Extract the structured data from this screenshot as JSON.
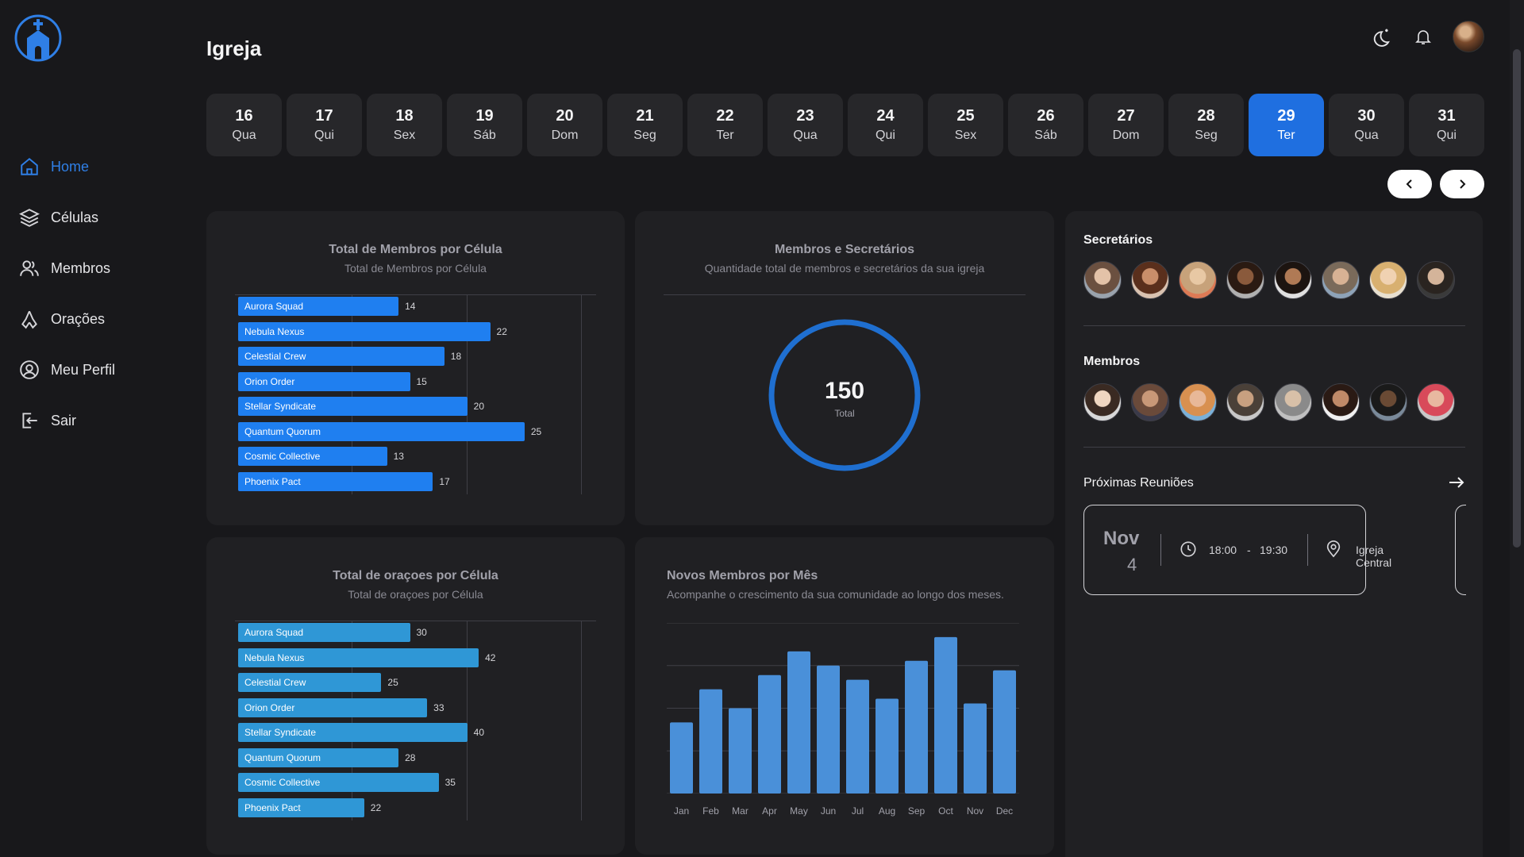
{
  "sidebar": {
    "items": [
      {
        "label": "Home",
        "icon": "home-icon"
      },
      {
        "label": "Células",
        "icon": "layers-icon"
      },
      {
        "label": "Membros",
        "icon": "users-icon"
      },
      {
        "label": "Orações",
        "icon": "praying-hands-icon"
      },
      {
        "label": "Meu Perfil",
        "icon": "user-circle-icon"
      },
      {
        "label": "Sair",
        "icon": "logout-icon"
      }
    ],
    "active_color": "#2f7fe6"
  },
  "header": {
    "title": "Igreja"
  },
  "dates": [
    {
      "day": "16",
      "weekday": "Qua"
    },
    {
      "day": "17",
      "weekday": "Qui"
    },
    {
      "day": "18",
      "weekday": "Sex"
    },
    {
      "day": "19",
      "weekday": "Sáb"
    },
    {
      "day": "20",
      "weekday": "Dom"
    },
    {
      "day": "21",
      "weekday": "Seg"
    },
    {
      "day": "22",
      "weekday": "Ter"
    },
    {
      "day": "23",
      "weekday": "Qua"
    },
    {
      "day": "24",
      "weekday": "Qui"
    },
    {
      "day": "25",
      "weekday": "Sex"
    },
    {
      "day": "26",
      "weekday": "Sáb"
    },
    {
      "day": "27",
      "weekday": "Dom"
    },
    {
      "day": "28",
      "weekday": "Seg"
    },
    {
      "day": "29",
      "weekday": "Ter",
      "selected": true
    },
    {
      "day": "30",
      "weekday": "Qua"
    },
    {
      "day": "31",
      "weekday": "Qui"
    }
  ],
  "cards": {
    "members_per_cell": {
      "title": "Total de Membros por Célula",
      "subtitle": "Total de Membros por Célula"
    },
    "members_secretaries": {
      "title": "Membros e Secretários",
      "subtitle": "Quantidade total de membros e secretários da sua igreja",
      "total": "150",
      "total_label": "Total"
    },
    "prayers_per_cell": {
      "title": "Total de oraçoes por Célula",
      "subtitle": "Total de oraçoes por Célula"
    },
    "new_members": {
      "title": "Novos Membros por Mês",
      "subtitle": "Acompanhe o crescimento da sua comunidade ao longo dos meses."
    }
  },
  "right_panel": {
    "secretaries_title": "Secretários",
    "members_title": "Membros",
    "meetings_title": "Próximas Reuniões",
    "meeting": {
      "month": "Nov",
      "day": "4",
      "start": "18:00",
      "separator": "-",
      "end": "19:30",
      "location": "Igreja Central"
    }
  },
  "chart_data": [
    {
      "type": "bar",
      "orientation": "horizontal",
      "categories": [
        "Aurora Squad",
        "Nebula Nexus",
        "Celestial Crew",
        "Orion Order",
        "Stellar Syndicate",
        "Quantum Quorum",
        "Cosmic Collective",
        "Phoenix Pact"
      ],
      "values": [
        14,
        22,
        18,
        15,
        20,
        25,
        13,
        17
      ],
      "xlim": [
        0,
        30
      ],
      "color": "#1f7ff0",
      "title": "Total de Membros por Célula"
    },
    {
      "type": "bar",
      "orientation": "horizontal",
      "categories": [
        "Aurora Squad",
        "Nebula Nexus",
        "Celestial Crew",
        "Orion Order",
        "Stellar Syndicate",
        "Quantum Quorum",
        "Cosmic Collective",
        "Phoenix Pact"
      ],
      "values": [
        30,
        42,
        25,
        33,
        40,
        28,
        35,
        22
      ],
      "xlim": [
        0,
        60
      ],
      "color": "#2f97d6",
      "title": "Total de oraçoes por Célula"
    },
    {
      "type": "pie",
      "values": [
        150
      ],
      "center_label": "150",
      "color": "#1f6fd0",
      "title": "Membros e Secretários"
    },
    {
      "type": "bar",
      "categories": [
        "Jan",
        "Feb",
        "Mar",
        "Apr",
        "May",
        "Jun",
        "Jul",
        "Aug",
        "Sep",
        "Oct",
        "Nov",
        "Dec"
      ],
      "values": [
        15,
        22,
        18,
        25,
        30,
        27,
        24,
        20,
        28,
        33,
        19,
        26
      ],
      "ylim": [
        0,
        36
      ],
      "color": "#4a90d9",
      "title": "Novos Membros por Mês"
    }
  ],
  "colors": {
    "selected_date": "#1f6fe0",
    "background": "#18181b",
    "card": "#202023"
  }
}
